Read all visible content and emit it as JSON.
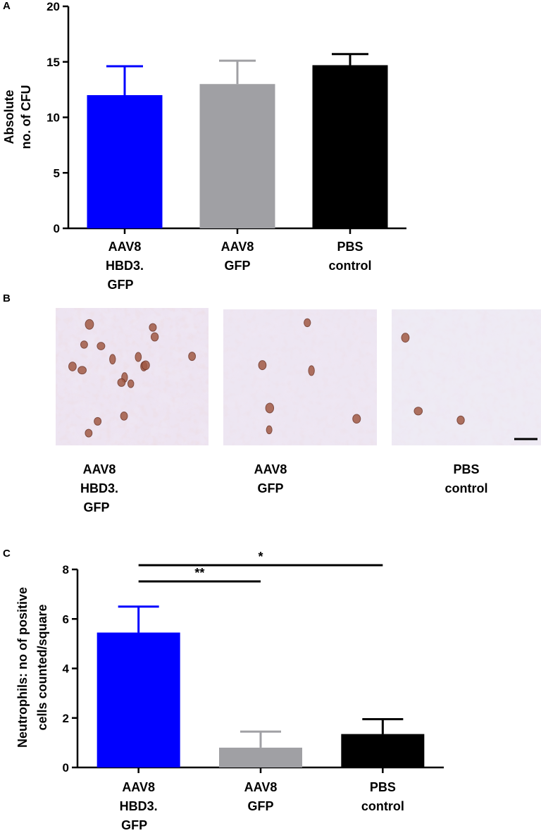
{
  "panels": {
    "a": "A",
    "b": "B",
    "c": "C"
  },
  "chart_data": [
    {
      "type": "bar",
      "ylabel_lines": [
        "Absolute",
        "no. of CFU"
      ],
      "ylim": [
        0,
        20
      ],
      "yticks": [
        0,
        5,
        10,
        15,
        20
      ],
      "categories": [
        [
          "AAV8",
          "HBD3.",
          "GFP"
        ],
        [
          "AAV8",
          "GFP"
        ],
        [
          "PBS",
          "control"
        ]
      ],
      "values": [
        12.0,
        13.0,
        14.7
      ],
      "errors": [
        2.6,
        2.1,
        1.0
      ],
      "colors": [
        "#0000ff",
        "#a0a0a4",
        "#000000"
      ]
    },
    {
      "type": "bar",
      "ylabel_lines": [
        "Neutrophils: no of positive",
        "cells counted/square"
      ],
      "ylim": [
        0,
        8
      ],
      "yticks": [
        0,
        2,
        4,
        6,
        8
      ],
      "categories": [
        [
          "AAV8",
          "HBD3.",
          "GFP"
        ],
        [
          "AAV8",
          "GFP"
        ],
        [
          "PBS",
          "control"
        ]
      ],
      "values": [
        5.45,
        0.8,
        1.35
      ],
      "errors": [
        1.05,
        0.65,
        0.6
      ],
      "colors": [
        "#0000ff",
        "#a0a0a4",
        "#000000"
      ],
      "significance": [
        {
          "from": 0,
          "to": 1,
          "label": "**"
        },
        {
          "from": 0,
          "to": 2,
          "label": "*"
        }
      ]
    }
  ],
  "micrographs": {
    "captions": [
      [
        "AAV8",
        "HBD3.",
        "GFP"
      ],
      [
        "AAV8",
        "GFP"
      ],
      [
        "PBS",
        "control"
      ]
    ],
    "positive_cells": [
      18,
      6,
      3
    ]
  }
}
